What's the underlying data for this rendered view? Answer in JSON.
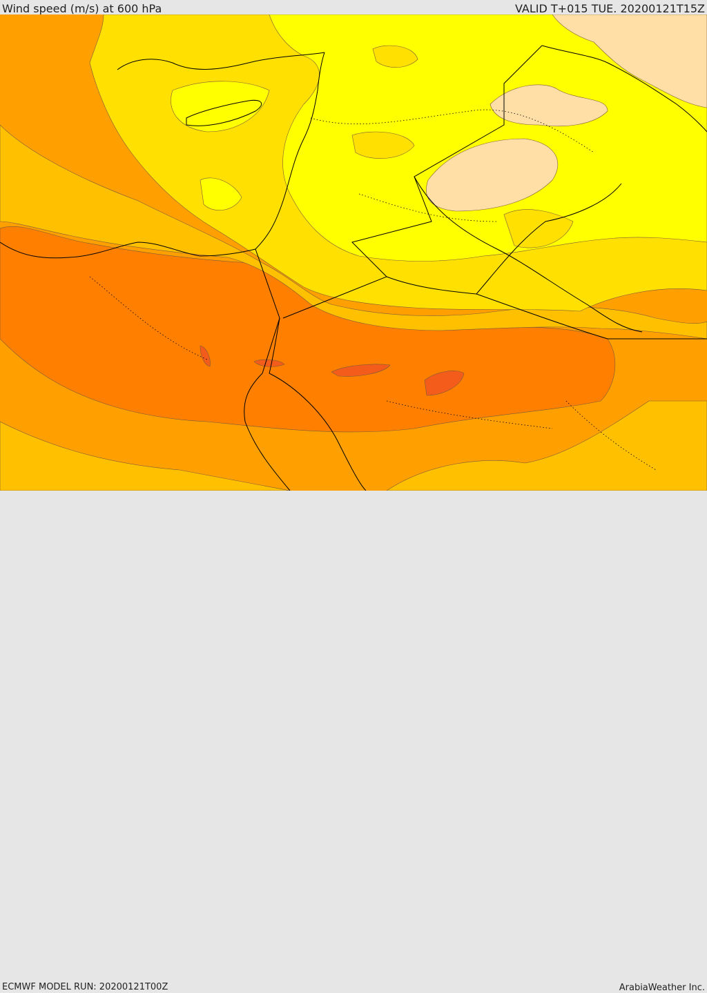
{
  "header": {
    "title": "Wind speed (m/s) at 600 hPa",
    "valid": "VALID T+015 TUE. 20200121T15Z"
  },
  "footer": {
    "model_run": "ECMWF MODEL RUN: 20200121T00Z",
    "credit": "ArabiaWeather Inc."
  },
  "colors": {
    "pale": "#ffdfa5",
    "yellow": "#ffff00",
    "gold": "#ffe000",
    "amber": "#ffc000",
    "light_orange": "#ffa000",
    "orange": "#ff7f00",
    "red_orange": "#f35c1a",
    "coast": "#000000",
    "contour": "#7a5a3a"
  }
}
